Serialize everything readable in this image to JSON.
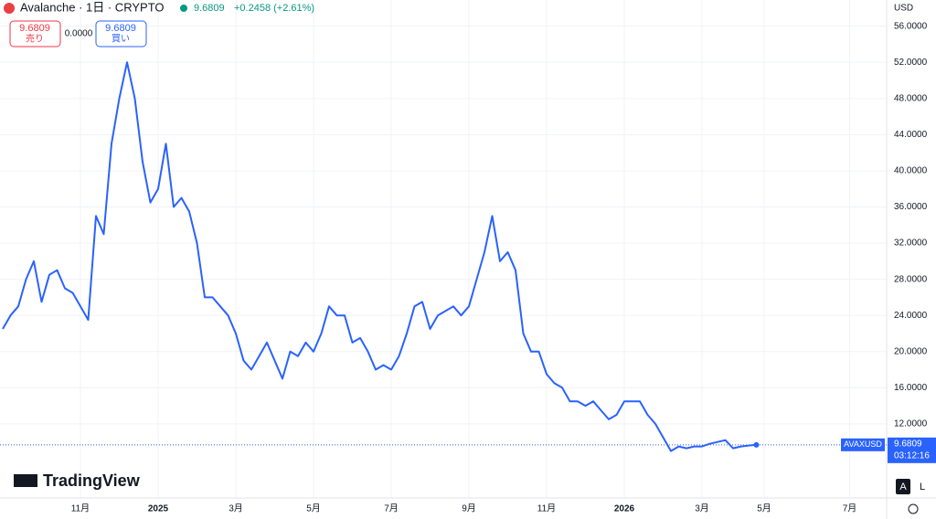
{
  "header": {
    "symbol": "Avalanche · 1日 · CRYPTO",
    "price": "9.6809",
    "change": "+0.2458 (+2.61%)",
    "sell_price": "9.6809",
    "sell_label": "売り",
    "spread": "0.0000",
    "buy_price": "9.6809",
    "buy_label": "買い",
    "currency": "USD",
    "ticker": "AVAXUSD",
    "last_price": "9.6809",
    "countdown": "03:12:16",
    "brand": "TradingView",
    "auto": "A",
    "log": "L"
  },
  "chart_data": {
    "type": "line",
    "color": "#2962ff",
    "grid": true,
    "categories": [
      null,
      null,
      null,
      null,
      null,
      null,
      null,
      null,
      null,
      null,
      "11月",
      null,
      null,
      null,
      null,
      null,
      null,
      null,
      null,
      null,
      "2025",
      null,
      null,
      null,
      null,
      null,
      null,
      null,
      null,
      null,
      "3月",
      null,
      null,
      null,
      null,
      null,
      null,
      null,
      null,
      null,
      "5月",
      null,
      null,
      null,
      null,
      null,
      null,
      null,
      null,
      null,
      "7月",
      null,
      null,
      null,
      null,
      null,
      null,
      null,
      null,
      null,
      "9月",
      null,
      null,
      null,
      null,
      null,
      null,
      null,
      null,
      null,
      "11月",
      null,
      null,
      null,
      null,
      null,
      null,
      null,
      null,
      null,
      "2026",
      null,
      null,
      null,
      null,
      null,
      null,
      null,
      null,
      null,
      "3月",
      null,
      null,
      null,
      null,
      null,
      null,
      null,
      "5月",
      null,
      null,
      null,
      null,
      null,
      null,
      null,
      null,
      null,
      null,
      "7月",
      null,
      null,
      null,
      null
    ],
    "series": [
      {
        "name": "AVAXUSD",
        "color": "#2962ff",
        "values": [
          22.5,
          24,
          25,
          28,
          30,
          25.5,
          28.5,
          29,
          27,
          26.5,
          25,
          23.5,
          35,
          33,
          43,
          48,
          52,
          48,
          41,
          36.5,
          38,
          43,
          36,
          37,
          35.5,
          32,
          26,
          26,
          25,
          24,
          22,
          19,
          18,
          19.5,
          21,
          19,
          17,
          20,
          19.5,
          21,
          20,
          22,
          25,
          24,
          24,
          21,
          21.5,
          20,
          18,
          18.5,
          18,
          19.5,
          22,
          25,
          25.5,
          22.5,
          24,
          24.5,
          25,
          24,
          25,
          28,
          31,
          35,
          30,
          31,
          29,
          22,
          20,
          20,
          17.5,
          16.5,
          16,
          14.5,
          14.5,
          14,
          14.5,
          13.5,
          12.5,
          13,
          14.5,
          14.5,
          14.5,
          13,
          12,
          10.5,
          9,
          9.5,
          9.3,
          9.5,
          9.5,
          9.8,
          10,
          10.2,
          9.3,
          9.5,
          9.6,
          9.6809,
          null,
          null,
          null,
          null,
          null,
          null,
          null,
          null,
          null,
          null,
          null,
          null,
          null,
          null,
          null,
          null
        ]
      }
    ],
    "ylim": [
      3.8,
      58.9
    ],
    "yticks": [
      {
        "value": 12,
        "label": "12.0000"
      },
      {
        "value": 16,
        "label": "16.0000"
      },
      {
        "value": 20,
        "label": "20.0000"
      },
      {
        "value": 24,
        "label": "24.0000"
      },
      {
        "value": 28,
        "label": "28.0000"
      },
      {
        "value": 32,
        "label": "32.0000"
      },
      {
        "value": 36,
        "label": "36.0000"
      },
      {
        "value": 40,
        "label": "40.0000"
      },
      {
        "value": 44,
        "label": "44.0000"
      },
      {
        "value": 48,
        "label": "48.0000"
      },
      {
        "value": 52,
        "label": "52.0000"
      },
      {
        "value": 56,
        "label": "56.0000"
      }
    ],
    "last_value": 9.6809
  }
}
